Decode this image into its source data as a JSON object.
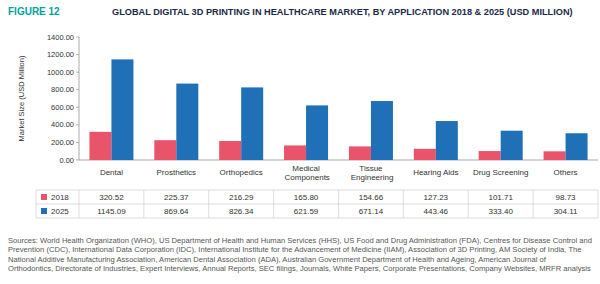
{
  "chart_data": {
    "type": "bar",
    "figure_label": "FIGURE 12",
    "title": "GLOBAL DIGITAL 3D PRINTING IN HEALTHCARE MARKET, BY APPLICATION 2018 & 2025 (USD MILLION)",
    "y_label": "Market Size (USD Million)",
    "categories": [
      "Dental",
      "Prosthetics",
      "Orthopedics",
      "Medical Components",
      "Tissue Engineering",
      "Hearing Aids",
      "Drug Screening",
      "Others"
    ],
    "series": [
      {
        "name": "2018",
        "color": "#e9546b",
        "values": [
          320.52,
          225.37,
          216.29,
          165.8,
          154.66,
          127.23,
          101.71,
          98.73
        ],
        "value_labels": [
          "320.52",
          "225.37",
          "216.29",
          "165.80",
          "154.66",
          "127.23",
          "101.71",
          "98.73"
        ]
      },
      {
        "name": "2025",
        "color": "#1f70b6",
        "values": [
          1145.09,
          869.64,
          826.34,
          621.59,
          671.14,
          443.46,
          333.4,
          304.11
        ],
        "value_labels": [
          "1145.09",
          "869.64",
          "826.34",
          "621.59",
          "671.14",
          "443.46",
          "333.40",
          "304.11"
        ]
      }
    ],
    "ylim": [
      0,
      1400
    ],
    "yticks": [
      {
        "value": 0,
        "label": "0.00"
      },
      {
        "value": 200,
        "label": "200.00"
      },
      {
        "value": 400,
        "label": "400.00"
      },
      {
        "value": 600,
        "label": "600.00"
      },
      {
        "value": 800,
        "label": "800.00"
      },
      {
        "value": 1000,
        "label": "1000.00"
      },
      {
        "value": 1200,
        "label": "1200.00"
      },
      {
        "value": 1400,
        "label": "1400.00"
      }
    ],
    "grid": false,
    "source": "Sources: World Health Organization (WHO), US Department of Health and Human Services (HHS), US Food and Drug Administration (FDA), Centres for Disease Control and Prevention (CDC), International Data Corporation (IDC), International Institute for the Advancement of Medicine (IIAM), Association of 3D Printing, AM Society of India, The National Additive Manufacturing Association, American Dental Association (ADA), Australian Government Department of Health and Ageing, American Journal of Orthodontics, Directorate of Industries, Expert Interviews, Annual Reports, SEC filings, Journals, White Papers, Corporate Presentations, Company Websites, MRFR analysis"
  }
}
